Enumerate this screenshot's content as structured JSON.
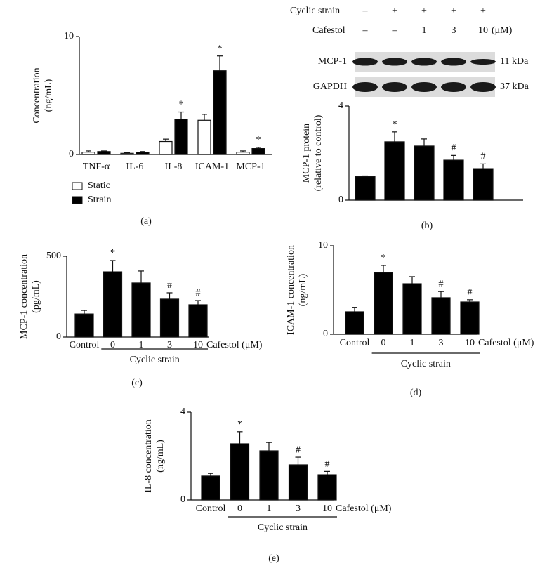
{
  "blot": {
    "rows": [
      {
        "label": "Cyclic strain",
        "cells": [
          "–",
          "+",
          "+",
          "+",
          "+"
        ]
      },
      {
        "label": "Cafestol",
        "cells": [
          "–",
          "–",
          "1",
          "3",
          "10"
        ]
      }
    ],
    "unit": "(μM)",
    "bands": [
      {
        "name": "MCP-1",
        "size": "11 kDa"
      },
      {
        "name": "GAPDH",
        "size": "37 kDa"
      }
    ]
  },
  "chart_data": [
    {
      "type": "grouped_bar",
      "label": "(a)",
      "y_label": [
        "Concentration",
        "(ng/mL)"
      ],
      "categories": [
        "TNF-α",
        "IL-6",
        "IL-8",
        "ICAM-1",
        "MCP-1"
      ],
      "series": [
        {
          "name": "Static",
          "color": "#ffffff",
          "values": [
            0.2,
            0.1,
            1.1,
            2.9,
            0.2
          ],
          "errors": [
            0.1,
            0.05,
            0.2,
            0.5,
            0.1
          ],
          "markers": [
            null,
            null,
            null,
            null,
            null
          ]
        },
        {
          "name": "Strain",
          "color": "#000000",
          "values": [
            0.25,
            0.2,
            3.0,
            7.1,
            0.5
          ],
          "errors": [
            0.05,
            0.05,
            0.6,
            1.25,
            0.1
          ],
          "markers": [
            null,
            null,
            "*",
            "*",
            "*"
          ]
        }
      ],
      "ylim": [
        0,
        10
      ],
      "yticks": [
        0,
        10
      ],
      "legend": "bottom-left"
    },
    {
      "type": "bar",
      "label": "(b)",
      "y_label": [
        "MCP-1 protein",
        "(relative to control)"
      ],
      "categories": [
        null,
        null,
        null,
        null,
        null
      ],
      "values": [
        1.0,
        2.48,
        2.3,
        1.7,
        1.34
      ],
      "errors": [
        0.03,
        0.42,
        0.3,
        0.2,
        0.2
      ],
      "markers": [
        null,
        "*",
        null,
        "#",
        "#"
      ],
      "color": "#000000",
      "ylim": [
        0,
        4
      ],
      "yticks": [
        0,
        4
      ]
    },
    {
      "type": "bar",
      "label": "(c)",
      "y_label": [
        "MCP-1 concentration",
        "(pg/mL)"
      ],
      "categories": [
        "Control",
        "0",
        "1",
        "3",
        "10"
      ],
      "x_label": "Cafestol (μM)",
      "group_label": "Cyclic strain",
      "values": [
        143,
        404,
        335,
        235,
        200
      ],
      "errors": [
        22,
        70,
        74,
        39,
        26
      ],
      "markers": [
        null,
        "*",
        null,
        "#",
        "#"
      ],
      "color": "#000000",
      "ylim": [
        0,
        500
      ],
      "yticks": [
        0,
        500
      ]
    },
    {
      "type": "bar",
      "label": "(d)",
      "y_label": [
        "ICAM-1 concentration",
        "(ng/mL)"
      ],
      "categories": [
        "Control",
        "0",
        "1",
        "3",
        "10"
      ],
      "x_label": "Cafestol (μM)",
      "group_label": "Cyclic strain",
      "values": [
        2.54,
        6.98,
        5.71,
        4.13,
        3.65
      ],
      "errors": [
        0.5,
        0.8,
        0.8,
        0.7,
        0.25
      ],
      "markers": [
        null,
        "*",
        null,
        "#",
        "#"
      ],
      "color": "#000000",
      "ylim": [
        0,
        10
      ],
      "yticks": [
        0,
        10
      ]
    },
    {
      "type": "bar",
      "label": "(e)",
      "y_label": [
        "IL-8 concentration",
        "(ng/mL)"
      ],
      "categories": [
        "Control",
        "0",
        "1",
        "3",
        "10"
      ],
      "x_label": "Cafestol (μM)",
      "group_label": "Cyclic strain",
      "values": [
        1.09,
        2.56,
        2.24,
        1.6,
        1.15
      ],
      "errors": [
        0.12,
        0.55,
        0.38,
        0.35,
        0.15
      ],
      "markers": [
        null,
        "*",
        null,
        "#",
        "#"
      ],
      "color": "#000000",
      "ylim": [
        0,
        4
      ],
      "yticks": [
        0,
        4
      ]
    }
  ]
}
